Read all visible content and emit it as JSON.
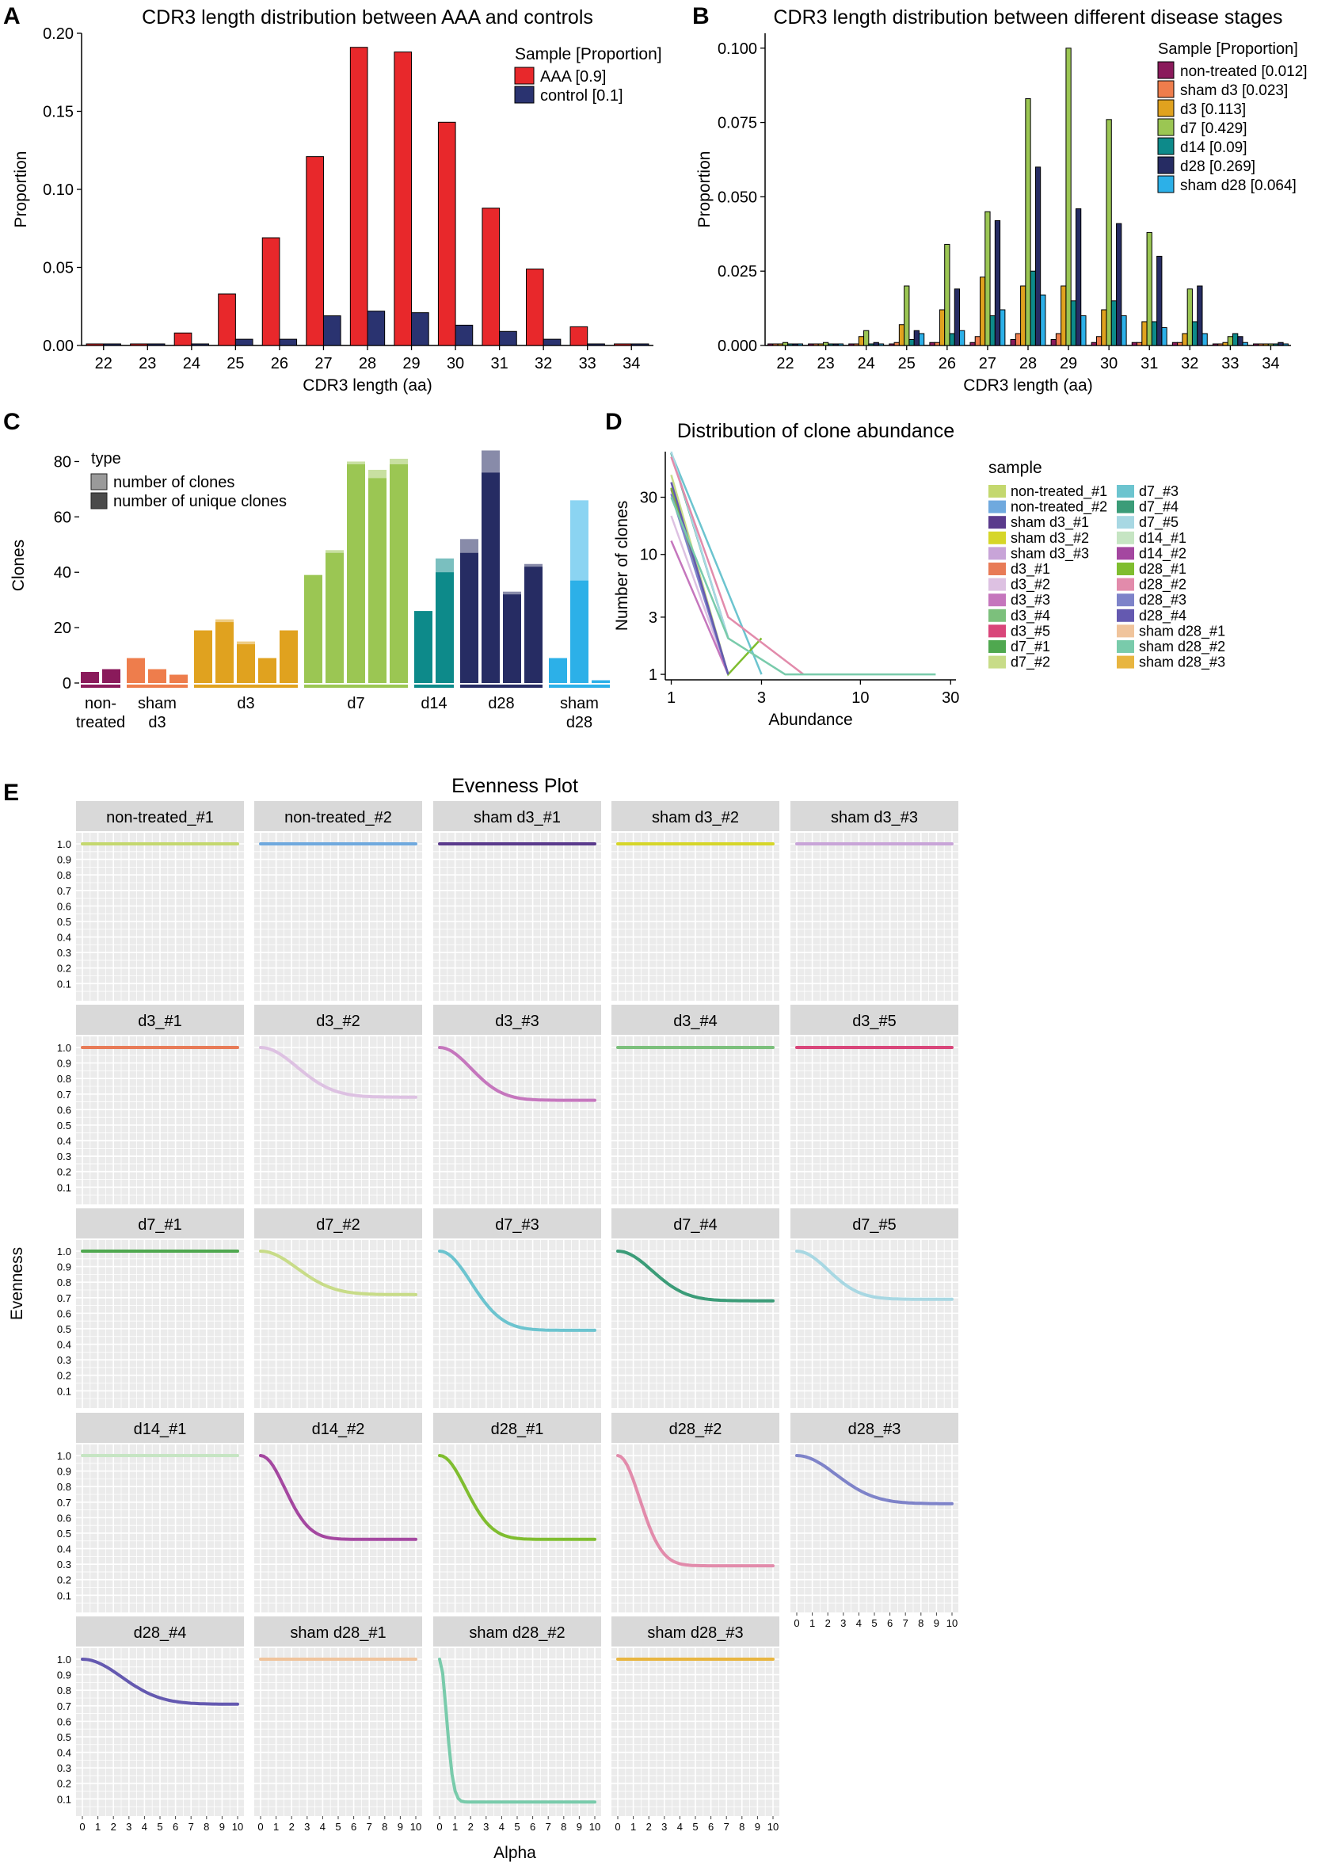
{
  "panel_letters": {
    "A": "A",
    "B": "B",
    "C": "C",
    "D": "D",
    "E": "E"
  },
  "colors": {
    "aaa": "#e8282b",
    "control": "#2a3370",
    "grid_bg": "#ebebeb",
    "strip": "#d9d9d9",
    "non_treated": "#8a1a5b",
    "sham_d3": "#ee7d4c",
    "d3": "#e0a21f",
    "d7": "#9bc653",
    "d14": "#0d8a8a",
    "d28": "#262c63",
    "sham_d28": "#2cb0e8"
  },
  "chart_data": [
    {
      "id": "A",
      "type": "bar",
      "title": "CDR3 length distribution between AAA and controls",
      "xlabel": "CDR3 length (aa)",
      "ylabel": "Proportion",
      "ylim": [
        0,
        0.2
      ],
      "yticks": [
        "0.00",
        "0.05",
        "0.10",
        "0.15",
        "0.20"
      ],
      "categories": [
        "22",
        "23",
        "24",
        "25",
        "26",
        "27",
        "28",
        "29",
        "30",
        "31",
        "32",
        "33",
        "34"
      ],
      "legend_title": "Sample [Proportion]",
      "legend_position": "top-right",
      "series": [
        {
          "name": "AAA [0.9]",
          "color": "#e8282b",
          "values": [
            0.001,
            0.001,
            0.008,
            0.033,
            0.069,
            0.121,
            0.191,
            0.188,
            0.143,
            0.088,
            0.049,
            0.012,
            0.001
          ]
        },
        {
          "name": "control [0.1]",
          "color": "#2a3370",
          "values": [
            0,
            0,
            0,
            0.004,
            0.004,
            0.019,
            0.022,
            0.021,
            0.013,
            0.009,
            0.004,
            0.001,
            0.001
          ]
        }
      ]
    },
    {
      "id": "B",
      "type": "bar",
      "title": "CDR3 length distribution between different disease stages",
      "xlabel": "CDR3 length (aa)",
      "ylabel": "Proportion",
      "ylim": [
        0,
        0.105
      ],
      "yticks": [
        "0.000",
        "0.025",
        "0.050",
        "0.075",
        "0.100"
      ],
      "categories": [
        "22",
        "23",
        "24",
        "25",
        "26",
        "27",
        "28",
        "29",
        "30",
        "31",
        "32",
        "33",
        "34"
      ],
      "legend_title": "Sample [Proportion]",
      "legend_position": "top-right",
      "series": [
        {
          "name": "non-treated [0.012]",
          "color": "#8a1a5b",
          "values": [
            0,
            0,
            0,
            0,
            0.001,
            0.001,
            0.002,
            0.002,
            0.001,
            0.001,
            0.001,
            0,
            0
          ]
        },
        {
          "name": "sham d3 [0.023]",
          "color": "#ee7d4c",
          "values": [
            0,
            0,
            0,
            0.001,
            0.001,
            0.003,
            0.004,
            0.004,
            0.003,
            0.001,
            0.001,
            0,
            0
          ]
        },
        {
          "name": "d3 [0.113]",
          "color": "#e0a21f",
          "values": [
            0,
            0,
            0.003,
            0.007,
            0.012,
            0.023,
            0.02,
            0.02,
            0.012,
            0.008,
            0.004,
            0.001,
            0
          ]
        },
        {
          "name": "d7 [0.429]",
          "color": "#9bc653",
          "values": [
            0.001,
            0.001,
            0.005,
            0.02,
            0.034,
            0.045,
            0.083,
            0.1,
            0.076,
            0.038,
            0.019,
            0.003,
            0
          ]
        },
        {
          "name": "d14 [0.09]",
          "color": "#0d8a8a",
          "values": [
            0,
            0,
            0,
            0.002,
            0.004,
            0.01,
            0.025,
            0.015,
            0.015,
            0.008,
            0.008,
            0.004,
            0
          ]
        },
        {
          "name": "d28 [0.269]",
          "color": "#262c63",
          "values": [
            0,
            0,
            0.001,
            0.005,
            0.019,
            0.042,
            0.06,
            0.046,
            0.041,
            0.03,
            0.02,
            0.003,
            0.001
          ]
        },
        {
          "name": "sham d28 [0.064]",
          "color": "#2cb0e8",
          "values": [
            0,
            0,
            0,
            0.004,
            0.005,
            0.012,
            0.017,
            0.01,
            0.01,
            0.006,
            0.004,
            0.001,
            0
          ]
        }
      ]
    },
    {
      "id": "C",
      "type": "bar",
      "ylabel": "Clones",
      "ylim": [
        0,
        85
      ],
      "yticks": [
        "0",
        "20",
        "40",
        "60",
        "80"
      ],
      "legend_title": "type",
      "legend_position": "top-left",
      "legend": [
        "number of clones",
        "number of unique clones"
      ],
      "groups": [
        {
          "label": "non-\ntreated",
          "color": "#8a1a5b",
          "clones": [
            4,
            5
          ],
          "unique": [
            4,
            5
          ]
        },
        {
          "label": "sham\nd3",
          "color": "#ee7d4c",
          "clones": [
            9,
            5,
            3
          ],
          "unique": [
            9,
            5,
            3
          ]
        },
        {
          "label": "d3",
          "color": "#e0a21f",
          "clones": [
            19,
            23,
            15,
            9,
            19
          ],
          "unique": [
            19,
            22,
            14,
            9,
            19
          ]
        },
        {
          "label": "d7",
          "color": "#9bc653",
          "clones": [
            39,
            48,
            80,
            77,
            81
          ],
          "unique": [
            39,
            47,
            79,
            74,
            79
          ]
        },
        {
          "label": "d14",
          "color": "#0d8a8a",
          "clones": [
            26,
            45
          ],
          "unique": [
            26,
            40
          ]
        },
        {
          "label": "d28",
          "color": "#262c63",
          "clones": [
            52,
            84,
            33,
            43
          ],
          "unique": [
            47,
            76,
            32,
            42
          ]
        },
        {
          "label": "sham\nd28",
          "color": "#2cb0e8",
          "clones": [
            9,
            66,
            1
          ],
          "unique": [
            9,
            37,
            1
          ]
        }
      ]
    },
    {
      "id": "D",
      "type": "line",
      "title": "Distribution of clone abundance",
      "xlabel": "Abundance",
      "ylabel": "Number of clones",
      "xscale": "log",
      "yscale": "log",
      "xticks": [
        "1",
        "3",
        "10",
        "30"
      ],
      "yticks": [
        "1",
        "3",
        "10",
        "30"
      ],
      "legend_title": "sample",
      "legend_position": "right",
      "series": [
        {
          "name": "non-treated_#1",
          "color": "#c4d86e",
          "x": [
            1
          ],
          "y": [
            4
          ]
        },
        {
          "name": "non-treated_#2",
          "color": "#6fa9de",
          "x": [
            1
          ],
          "y": [
            5
          ]
        },
        {
          "name": "sham d3_#1",
          "color": "#5a3a8c",
          "x": [
            1
          ],
          "y": [
            9
          ]
        },
        {
          "name": "sham d3_#2",
          "color": "#d6d629",
          "x": [
            1
          ],
          "y": [
            5
          ]
        },
        {
          "name": "sham d3_#3",
          "color": "#c8a4d8",
          "x": [
            1
          ],
          "y": [
            3
          ]
        },
        {
          "name": "d3_#1",
          "color": "#e87b57",
          "x": [
            1
          ],
          "y": [
            19
          ]
        },
        {
          "name": "d3_#2",
          "color": "#ddc1e2",
          "x": [
            1,
            2
          ],
          "y": [
            21,
            1
          ]
        },
        {
          "name": "d3_#3",
          "color": "#c576bd",
          "x": [
            1,
            2
          ],
          "y": [
            13,
            1
          ]
        },
        {
          "name": "d3_#4",
          "color": "#7cc07c",
          "x": [
            1
          ],
          "y": [
            9
          ]
        },
        {
          "name": "d3_#5",
          "color": "#d9467a",
          "x": [
            1
          ],
          "y": [
            19
          ]
        },
        {
          "name": "d7_#1",
          "color": "#4fa84f",
          "x": [
            1
          ],
          "y": [
            39
          ]
        },
        {
          "name": "d7_#2",
          "color": "#c8dc88",
          "x": [
            1,
            2
          ],
          "y": [
            46,
            1
          ]
        },
        {
          "name": "d7_#3",
          "color": "#6cc4cf",
          "x": [
            1,
            3
          ],
          "y": [
            70,
            1
          ]
        },
        {
          "name": "d7_#4",
          "color": "#3b9c78",
          "x": [
            1,
            2
          ],
          "y": [
            70,
            2
          ]
        },
        {
          "name": "d7_#5",
          "color": "#a8d8e3",
          "x": [
            1,
            2
          ],
          "y": [
            72,
            2
          ]
        },
        {
          "name": "d14_#1",
          "color": "#c6e5c3",
          "x": [
            1
          ],
          "y": [
            26
          ]
        },
        {
          "name": "d14_#2",
          "color": "#a447a0",
          "x": [
            1,
            2
          ],
          "y": [
            35,
            1
          ]
        },
        {
          "name": "d28_#1",
          "color": "#7fbd2f",
          "x": [
            1,
            2,
            3
          ],
          "y": [
            36,
            1,
            2
          ]
        },
        {
          "name": "d28_#2",
          "color": "#e28bab",
          "x": [
            1,
            2,
            5
          ],
          "y": [
            65,
            3,
            1
          ]
        },
        {
          "name": "d28_#3",
          "color": "#7e83c9",
          "x": [
            1,
            2
          ],
          "y": [
            32,
            1
          ]
        },
        {
          "name": "d28_#4",
          "color": "#6459b0",
          "x": [
            1,
            2
          ],
          "y": [
            40,
            1
          ]
        },
        {
          "name": "sham d28_#1",
          "color": "#f0c49c",
          "x": [
            1
          ],
          "y": [
            9
          ]
        },
        {
          "name": "sham d28_#2",
          "color": "#79cbab",
          "x": [
            1,
            2,
            4,
            25
          ],
          "y": [
            30,
            2,
            1,
            1
          ]
        },
        {
          "name": "sham d28_#3",
          "color": "#e8b540",
          "x": [
            1
          ],
          "y": [
            1
          ]
        }
      ]
    },
    {
      "id": "E",
      "type": "line",
      "title": "Evenness Plot",
      "xlabel": "Alpha",
      "ylabel": "Evenness",
      "xlim": [
        0,
        10
      ],
      "ylim": [
        0,
        1
      ],
      "xticks": [
        "0",
        "1",
        "2",
        "3",
        "4",
        "5",
        "6",
        "7",
        "8",
        "9",
        "10"
      ],
      "yticks": [
        "0.1",
        "0.2",
        "0.3",
        "0.4",
        "0.5",
        "0.6",
        "0.7",
        "0.8",
        "0.9",
        "1.0"
      ],
      "panels": [
        {
          "name": "non-treated_#1",
          "color": "#c4d86e",
          "final": 1.0,
          "rate": 0.3
        },
        {
          "name": "non-treated_#2",
          "color": "#6fa9de",
          "final": 1.0,
          "rate": 0.3
        },
        {
          "name": "sham d3_#1",
          "color": "#5a3a8c",
          "final": 1.0,
          "rate": 0.3
        },
        {
          "name": "sham d3_#2",
          "color": "#d6d629",
          "final": 1.0,
          "rate": 0.3
        },
        {
          "name": "sham d3_#3",
          "color": "#c8a4d8",
          "final": 1.0,
          "rate": 0.3
        },
        {
          "name": "d3_#1",
          "color": "#e87b57",
          "final": 1.0,
          "rate": 0.3
        },
        {
          "name": "d3_#2",
          "color": "#ddc1e2",
          "final": 0.68,
          "rate": 0.3
        },
        {
          "name": "d3_#3",
          "color": "#c576bd",
          "final": 0.66,
          "rate": 0.35
        },
        {
          "name": "d3_#4",
          "color": "#7cc07c",
          "final": 1.0,
          "rate": 0.3
        },
        {
          "name": "d3_#5",
          "color": "#d9467a",
          "final": 1.0,
          "rate": 0.3
        },
        {
          "name": "d7_#1",
          "color": "#4fa84f",
          "final": 1.0,
          "rate": 0.3
        },
        {
          "name": "d7_#2",
          "color": "#c8dc88",
          "final": 0.72,
          "rate": 0.3
        },
        {
          "name": "d7_#3",
          "color": "#6cc4cf",
          "final": 0.49,
          "rate": 0.35
        },
        {
          "name": "d7_#4",
          "color": "#3b9c78",
          "final": 0.68,
          "rate": 0.32
        },
        {
          "name": "d7_#5",
          "color": "#a8d8e3",
          "final": 0.69,
          "rate": 0.35
        },
        {
          "name": "d14_#1",
          "color": "#c6e5c3",
          "final": 1.0,
          "rate": 0.3
        },
        {
          "name": "d14_#2",
          "color": "#a447a0",
          "final": 0.46,
          "rate": 0.45
        },
        {
          "name": "d28_#1",
          "color": "#7fbd2f",
          "final": 0.46,
          "rate": 0.42
        },
        {
          "name": "d28_#2",
          "color": "#e28bab",
          "final": 0.29,
          "rate": 0.5
        },
        {
          "name": "d28_#3",
          "color": "#7e83c9",
          "final": 0.69,
          "rate": 0.28
        },
        {
          "name": "d28_#4",
          "color": "#6459b0",
          "final": 0.71,
          "rate": 0.28
        },
        {
          "name": "sham d28_#1",
          "color": "#f0c49c",
          "final": 1.0,
          "rate": 0.3
        },
        {
          "name": "sham d28_#2",
          "color": "#79cbab",
          "final": 0.08,
          "rate": 1.6
        },
        {
          "name": "sham d28_#3",
          "color": "#e8b540",
          "final": 1.0,
          "rate": 0.3
        }
      ]
    }
  ]
}
